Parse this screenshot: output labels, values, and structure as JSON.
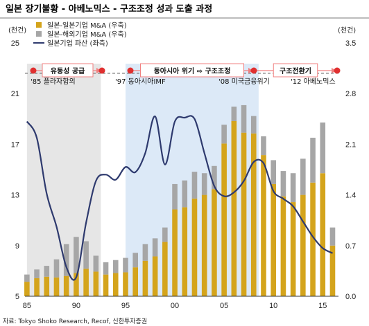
{
  "title": "일본 장기불황 - 아베노믹스 - 구조조정 성과 도출 과정",
  "source": "자료: Tokyo Shoko Research, Recof, 신한투자증권",
  "chart_data": {
    "type": "bar",
    "left_unit": "(천건)",
    "right_unit": "(천건)",
    "x_ticks": [
      "85",
      "90",
      "95",
      "00",
      "05",
      "10",
      "15"
    ],
    "y_left": {
      "min": 5,
      "max": 25,
      "ticks": [
        "5",
        "9",
        "13",
        "17",
        "21",
        "25"
      ]
    },
    "y_right": {
      "min": 0,
      "max": 3.5,
      "ticks": [
        "0.0",
        "0.7",
        "1.4",
        "2.1",
        "2.8",
        "3.5"
      ]
    },
    "x": [
      1985,
      1986,
      1987,
      1988,
      1989,
      1990,
      1991,
      1992,
      1993,
      1994,
      1995,
      1996,
      1997,
      1998,
      1999,
      2000,
      2001,
      2002,
      2003,
      2004,
      2005,
      2006,
      2007,
      2008,
      2009,
      2010,
      2011,
      2012,
      2013,
      2014,
      2015,
      2016
    ],
    "series": [
      {
        "name": "일본-일본기업 M&A (우축)",
        "axis": "right",
        "color": "#D4A41C",
        "values": [
          0.2,
          0.25,
          0.27,
          0.26,
          0.28,
          0.32,
          0.38,
          0.34,
          0.3,
          0.32,
          0.33,
          0.4,
          0.49,
          0.55,
          0.75,
          1.2,
          1.23,
          1.35,
          1.4,
          1.48,
          2.11,
          2.42,
          2.26,
          2.25,
          1.95,
          1.55,
          1.38,
          1.3,
          1.4,
          1.57,
          1.7,
          0.7
        ]
      },
      {
        "name": "일본-해외기업 M&A (우축)",
        "axis": "right",
        "color": "#A6A6A6",
        "values": [
          0.1,
          0.12,
          0.15,
          0.25,
          0.44,
          0.5,
          0.38,
          0.22,
          0.17,
          0.18,
          0.2,
          0.2,
          0.23,
          0.25,
          0.2,
          0.35,
          0.37,
          0.37,
          0.3,
          0.32,
          0.26,
          0.2,
          0.38,
          0.24,
          0.26,
          0.33,
          0.35,
          0.4,
          0.5,
          0.62,
          0.7,
          0.25
        ]
      },
      {
        "name": "일본기업 파산 (좌측)",
        "axis": "left",
        "color": "#2E3A6E",
        "values": [
          18.8,
          17.5,
          13.1,
          10.5,
          7.3,
          6.5,
          10.8,
          14.1,
          14.6,
          14.2,
          15.2,
          14.8,
          16.3,
          19.2,
          15.4,
          18.8,
          19.1,
          19.0,
          16.3,
          13.7,
          12.9,
          13.2,
          14.1,
          15.6,
          15.5,
          13.3,
          12.7,
          12.1,
          10.9,
          9.7,
          8.8,
          8.4
        ]
      }
    ],
    "periods": [
      {
        "label": "유동성 공급",
        "start_label": "'85 플라자합의",
        "start": 1985,
        "end": 1992.5,
        "shade": "#E6E6E6"
      },
      {
        "label": "동아시아 위기 ⇨ 구조조정",
        "start_label": "'97 동아시아IMF",
        "start": 1995,
        "end": 2008.5,
        "shade": "#DCE9F7"
      },
      {
        "label": "구조전환기",
        "start_label": "'08 미국금융위기",
        "start": 2008.5,
        "end": 2016.8,
        "shade": null
      },
      {
        "label": "",
        "start_label": "'12 아베노믹스",
        "start": null,
        "end": null,
        "shade": null
      }
    ],
    "reference_line": {
      "axis": "left",
      "value": 22.6,
      "style": "dashed"
    },
    "legend_position": "top-left",
    "grid": false
  }
}
